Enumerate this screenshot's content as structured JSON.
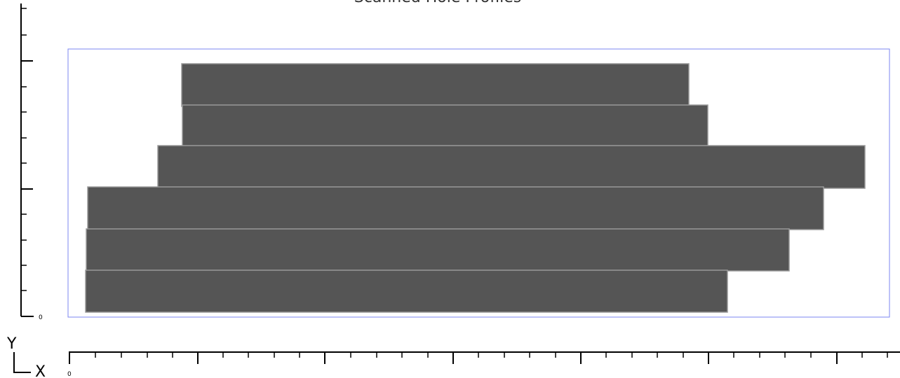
{
  "title": "Scanned Hole Profiles",
  "axis_indicator": {
    "y_label": "Y",
    "x_label": "X"
  },
  "zero_labels": {
    "vertical": "0",
    "horizontal": "0"
  },
  "colors": {
    "bar_fill": "#555555",
    "bar_edge": "#9a9a9a",
    "frame": "#7b86f2",
    "axis": "#000000"
  }
}
